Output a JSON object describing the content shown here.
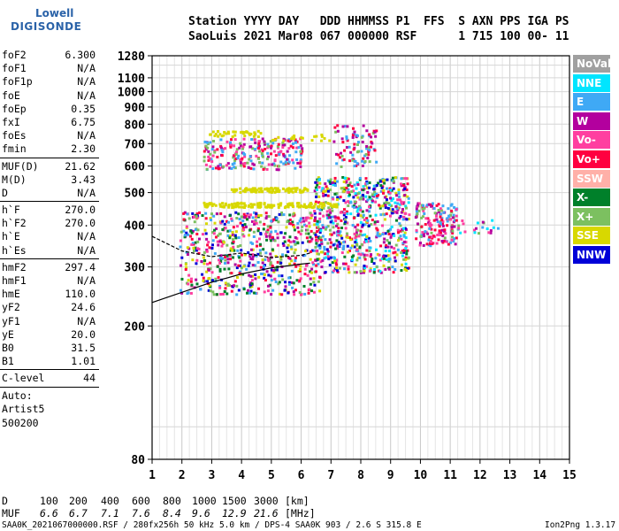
{
  "logo": {
    "line1": "Lowell",
    "line2": "DIGISONDE"
  },
  "header": {
    "line1": "Station YYYY DAY   DDD HHMMSS P1  FFS  S AXN PPS IGA PS",
    "line2": "SaoLuis 2021 Mar08 067 000000 RSF      1 715 100 00- 11"
  },
  "params": {
    "group1": [
      {
        "label": "foF2",
        "value": "6.300"
      },
      {
        "label": "foF1",
        "value": "N/A"
      },
      {
        "label": "foF1p",
        "value": "N/A"
      },
      {
        "label": "foE",
        "value": "N/A"
      },
      {
        "label": "foEp",
        "value": "0.35"
      },
      {
        "label": "fxI",
        "value": "6.75"
      },
      {
        "label": "foEs",
        "value": "N/A"
      },
      {
        "label": "fmin",
        "value": "2.30"
      }
    ],
    "group2": [
      {
        "label": "MUF(D)",
        "value": "21.62"
      },
      {
        "label": "M(D)",
        "value": "3.43"
      },
      {
        "label": "D",
        "value": "N/A"
      }
    ],
    "group3": [
      {
        "label": "h`F",
        "value": "270.0"
      },
      {
        "label": "h`F2",
        "value": "270.0"
      },
      {
        "label": "h`E",
        "value": "N/A"
      },
      {
        "label": "h`Es",
        "value": "N/A"
      }
    ],
    "group4": [
      {
        "label": "hmF2",
        "value": "297.4"
      },
      {
        "label": "hmF1",
        "value": "N/A"
      },
      {
        "label": "hmE",
        "value": "110.0"
      },
      {
        "label": "yF2",
        "value": "24.6"
      },
      {
        "label": "yF1",
        "value": "N/A"
      },
      {
        "label": "yE",
        "value": "20.0"
      },
      {
        "label": "B0",
        "value": "31.5"
      },
      {
        "label": "B1",
        "value": "1.01"
      }
    ],
    "group5": [
      {
        "label": "C-level",
        "value": "44"
      }
    ],
    "auto": [
      "Auto:",
      "Artist5",
      "500200"
    ]
  },
  "legend": [
    {
      "label": "NoVal",
      "color": "#a0a0a0"
    },
    {
      "label": "NNE",
      "color": "#00e5ff"
    },
    {
      "label": "E",
      "color": "#3fa9f5"
    },
    {
      "label": "W",
      "color": "#b3009e"
    },
    {
      "label": "Vo-",
      "color": "#ff3fa0"
    },
    {
      "label": "Vo+",
      "color": "#ff0040"
    },
    {
      "label": "SSW",
      "color": "#ffb0a8"
    },
    {
      "label": "X-",
      "color": "#00802a"
    },
    {
      "label": "X+",
      "color": "#7cc060"
    },
    {
      "label": "SSE",
      "color": "#d8d800"
    },
    {
      "label": "NNW",
      "color": "#0000d8"
    }
  ],
  "chart_data": {
    "type": "scatter",
    "xlim": [
      1,
      15
    ],
    "ylim": [
      80,
      1280
    ],
    "x_ticks": [
      "1",
      "2",
      "3",
      "4",
      "5",
      "6",
      "7",
      "8",
      "9",
      "10",
      "11",
      "12",
      "13",
      "14",
      "15"
    ],
    "y_ticks": [
      {
        "label": "1280",
        "value": 1280
      },
      {
        "label": "1100",
        "value": 1100
      },
      {
        "label": "1000",
        "value": 1000
      },
      {
        "label": "900",
        "value": 900
      },
      {
        "label": "800",
        "value": 800
      },
      {
        "label": "700",
        "value": 700
      },
      {
        "label": "600",
        "value": 600
      },
      {
        "label": "500",
        "value": 500
      },
      {
        "label": "400",
        "value": 400
      },
      {
        "label": "300",
        "value": 300
      },
      {
        "label": "200",
        "value": 200
      },
      {
        "label": "80",
        "value": 80
      }
    ],
    "y_scale": "log",
    "grid": true,
    "profile_curve": [
      [
        1.0,
        235
      ],
      [
        2.0,
        252
      ],
      [
        3.0,
        270
      ],
      [
        4.0,
        286
      ],
      [
        5.0,
        298
      ],
      [
        6.0,
        306
      ],
      [
        6.3,
        308
      ]
    ],
    "trace_curve": [
      [
        1.0,
        370
      ],
      [
        2.0,
        335
      ],
      [
        3.0,
        322
      ],
      [
        4.0,
        330
      ],
      [
        5.0,
        320
      ],
      [
        6.0,
        325
      ],
      [
        6.3,
        330
      ]
    ],
    "clusters": [
      {
        "x": [
          1.9,
          6.6
        ],
        "y": [
          250,
          440
        ],
        "n": 650,
        "palette": [
          "#ff0040",
          "#ff3fa0",
          "#b3009e",
          "#7cc060",
          "#0000d8",
          "#d8d800",
          "#00802a",
          "#3fa9f5"
        ]
      },
      {
        "x": [
          6.4,
          9.6
        ],
        "y": [
          290,
          560
        ],
        "n": 700,
        "palette": [
          "#ff0040",
          "#ff3fa0",
          "#b3009e",
          "#3fa9f5",
          "#00e5ff",
          "#7cc060",
          "#0000d8",
          "#00802a",
          "#d8d800"
        ]
      },
      {
        "x": [
          2.7,
          6.0
        ],
        "y": [
          590,
          730
        ],
        "n": 240,
        "palette": [
          "#ff0040",
          "#b3009e",
          "#ff3fa0",
          "#7cc060",
          "#3fa9f5"
        ]
      },
      {
        "x": [
          2.7,
          7.2
        ],
        "y": [
          455,
          470
        ],
        "n": 150,
        "palette": [
          "#d8d800"
        ]
      },
      {
        "x": [
          3.6,
          6.2
        ],
        "y": [
          505,
          520
        ],
        "n": 90,
        "palette": [
          "#d8d800"
        ]
      },
      {
        "x": [
          2.8,
          4.8
        ],
        "y": [
          740,
          770
        ],
        "n": 35,
        "palette": [
          "#d8d800"
        ]
      },
      {
        "x": [
          5.0,
          7.0
        ],
        "y": [
          720,
          750
        ],
        "n": 20,
        "palette": [
          "#d8d800"
        ]
      },
      {
        "x": [
          9.8,
          11.2
        ],
        "y": [
          350,
          470
        ],
        "n": 170,
        "palette": [
          "#ff0040",
          "#b3009e",
          "#3fa9f5",
          "#7cc060",
          "#ff3fa0"
        ]
      },
      {
        "x": [
          7.0,
          8.5
        ],
        "y": [
          600,
          800
        ],
        "n": 90,
        "palette": [
          "#ff0040",
          "#b3009e",
          "#3fa9f5",
          "#7cc060"
        ]
      },
      {
        "x": [
          11.0,
          12.6
        ],
        "y": [
          380,
          420
        ],
        "n": 25,
        "palette": [
          "#7cc060",
          "#b3009e",
          "#ff3fa0",
          "#00e5ff",
          "#3fa9f5"
        ]
      }
    ]
  },
  "footer": {
    "d_label": "D",
    "muf_label": "MUF",
    "d_values": [
      "100",
      "200",
      "400",
      "600",
      "800",
      "1000",
      "1500",
      "3000"
    ],
    "d_unit": "[km]",
    "muf_values": [
      "6.6",
      "6.7",
      "7.1",
      "7.6",
      "8.4",
      "9.6",
      "12.9",
      "21.6"
    ],
    "muf_unit": "[MHz]",
    "file_line": "SAA0K_2021067000000.RSF / 280fx256h 50 kHz 5.0 km / DPS-4 SAA0K 903 / 2.6 S 315.8 E",
    "version": "Ion2Png 1.3.17"
  }
}
